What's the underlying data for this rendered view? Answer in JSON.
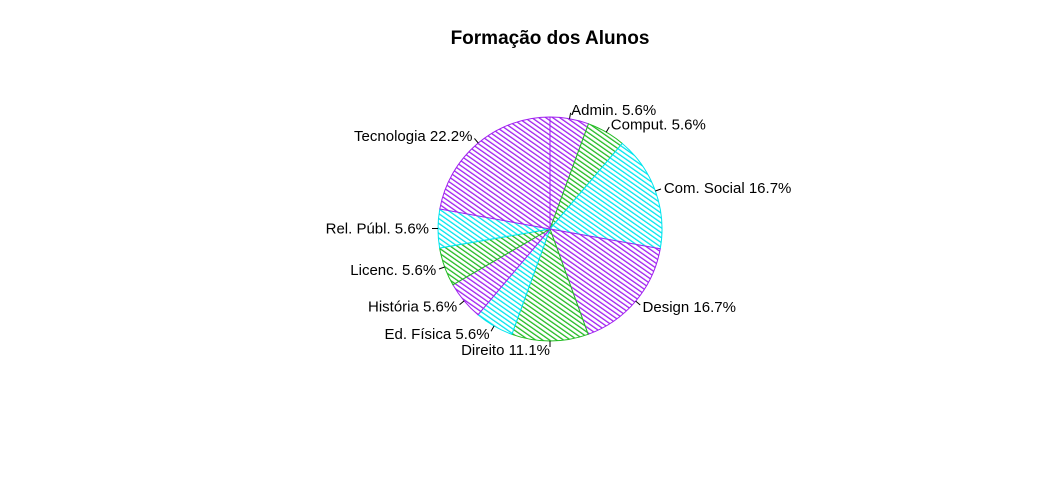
{
  "chart_data": {
    "type": "pie",
    "title": "Formação dos Alunos",
    "slices": [
      {
        "label": "Admin. 5.6%",
        "category": "Admin.",
        "percent": 5.6,
        "color": "#A020F0"
      },
      {
        "label": "Comput. 5.6%",
        "category": "Comput.",
        "percent": 5.6,
        "color": "#22BB22"
      },
      {
        "label": "Com. Social 16.7%",
        "category": "Com. Social",
        "percent": 16.7,
        "color": "#00E5EE"
      },
      {
        "label": "Design 16.7%",
        "category": "Design",
        "percent": 16.7,
        "color": "#A020F0"
      },
      {
        "label": "Direito 11.1%",
        "category": "Direito",
        "percent": 11.1,
        "color": "#22BB22"
      },
      {
        "label": "Ed. Física 5.6%",
        "category": "Ed. Física",
        "percent": 5.6,
        "color": "#00E5EE"
      },
      {
        "label": "História 5.6%",
        "category": "História",
        "percent": 5.6,
        "color": "#A020F0"
      },
      {
        "label": "Licenc. 5.6%",
        "category": "Licenc.",
        "percent": 5.6,
        "color": "#22BB22"
      },
      {
        "label": "Rel. Públ. 5.6%",
        "category": "Rel. Públ.",
        "percent": 5.6,
        "color": "#00E5EE"
      },
      {
        "label": "Tecnologia 22.2%",
        "category": "Tecnologia",
        "percent": 22.2,
        "color": "#A020F0"
      }
    ],
    "fill_style": "hatched",
    "start": "top",
    "direction": "clockwise"
  }
}
